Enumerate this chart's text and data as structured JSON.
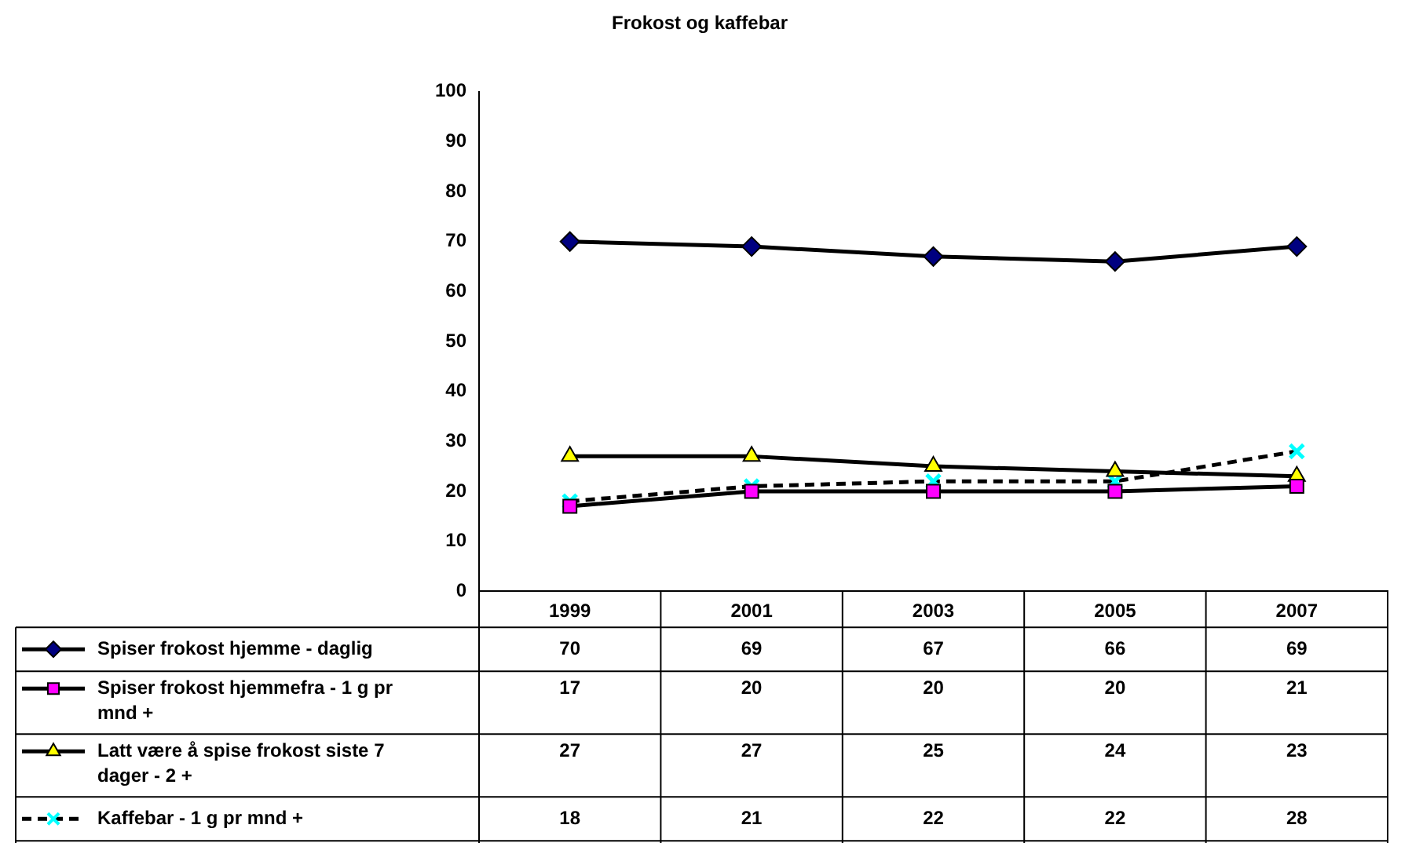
{
  "chart_data": {
    "type": "line",
    "title": "Frokost og kaffebar",
    "categories": [
      "1999",
      "2001",
      "2003",
      "2005",
      "2007"
    ],
    "series": [
      {
        "name": "Spiser frokost hjemme - daglig",
        "color": "#000000",
        "colors": [
          "#000080",
          "#000080",
          "#000080",
          "#000080",
          "#000080"
        ],
        "marker": "diamond",
        "line_style": "solid",
        "values": [
          70,
          69,
          67,
          66,
          69
        ]
      },
      {
        "name": "Spiser frokost hjemmefra - 1 g pr mnd +",
        "color": "#000000",
        "colors": [
          "#ff00ff",
          "#ff00ff",
          "#ff00ff",
          "#ff00ff",
          "#ff00ff"
        ],
        "marker": "square",
        "line_style": "solid",
        "values": [
          17,
          20,
          20,
          20,
          21
        ]
      },
      {
        "name": "Latt være å spise frokost siste 7 dager - 2 +",
        "color": "#000000",
        "colors": [
          "#ffff00",
          "#ffff00",
          "#ffff00",
          "#ffff00",
          "#ffff00"
        ],
        "marker": "triangle",
        "line_style": "solid",
        "values": [
          27,
          27,
          25,
          24,
          23
        ]
      },
      {
        "name": "Kaffebar - 1 g pr mnd +",
        "color": "#000000",
        "colors": [
          "#00ffff",
          "#00ffff",
          "#00ffff",
          "#00ffff",
          "#00ffff"
        ],
        "marker": "cross",
        "line_style": "dashed",
        "values": [
          18,
          21,
          22,
          22,
          28
        ]
      }
    ],
    "ylim": [
      0,
      100
    ],
    "yticks": [
      0,
      10,
      20,
      30,
      40,
      50,
      60,
      70,
      80,
      90,
      100
    ],
    "grid": false,
    "legend": "bottom",
    "data_labels": true
  }
}
